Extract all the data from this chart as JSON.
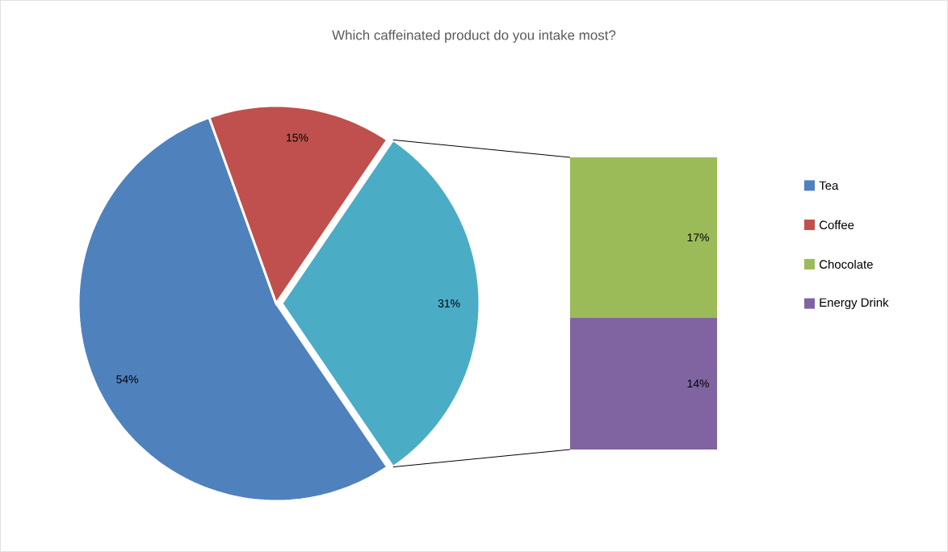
{
  "chart_data": [
    {
      "type": "pie",
      "title": "Which caffeinated product do you intake most?",
      "categories": [
        "Tea",
        "Coffee",
        null
      ],
      "values": [
        54,
        15,
        31
      ],
      "colors": [
        "#4f81bd",
        "#c0504d",
        "#4bacc6"
      ],
      "value_labels": [
        "54%",
        "15%",
        "31%"
      ],
      "legend": "right"
    },
    {
      "type": "bar",
      "stacked": true,
      "categories": [
        null
      ],
      "series": [
        {
          "name": "Energy Drink",
          "color": "#8064a2",
          "values": [
            14
          ],
          "value_labels": [
            "14%"
          ]
        },
        {
          "name": "Chocolate",
          "color": "#9bbb59",
          "values": [
            17
          ],
          "value_labels": [
            "17%"
          ]
        }
      ],
      "legend": "right"
    }
  ]
}
